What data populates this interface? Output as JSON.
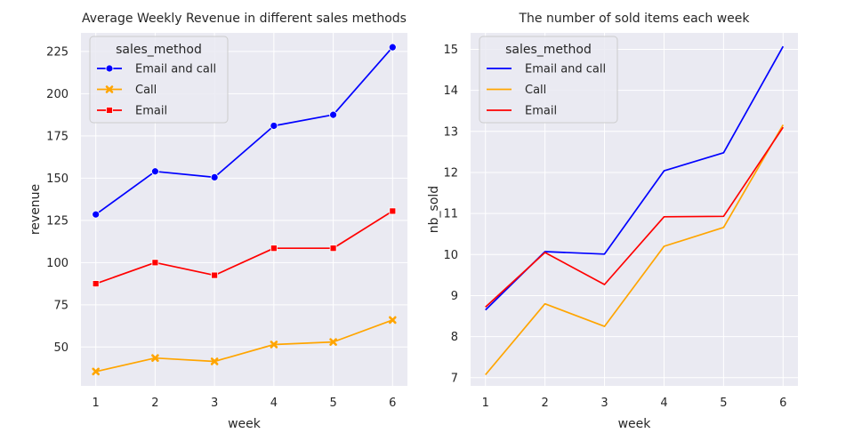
{
  "chart_data": [
    {
      "type": "line",
      "title": "Average Weekly Revenue in different sales methods",
      "xlabel": "week",
      "ylabel": "revenue",
      "x": [
        1,
        2,
        3,
        4,
        5,
        6
      ],
      "xticks": [
        "1",
        "2",
        "3",
        "4",
        "5",
        "6"
      ],
      "yticks": [
        "50",
        "75",
        "100",
        "125",
        "150",
        "175",
        "200",
        "225"
      ],
      "ylim": [
        27,
        236
      ],
      "grid": true,
      "legend_title": "sales_method",
      "legend_position": "top-left",
      "series": [
        {
          "name": "Email and call",
          "color": "#0000ff",
          "marker": "circle",
          "values": [
            128.5,
            154,
            150.5,
            181,
            187.5,
            227.5
          ]
        },
        {
          "name": "Call",
          "color": "#ffa500",
          "marker": "x",
          "values": [
            35.5,
            43.5,
            41.5,
            51.5,
            53,
            66
          ]
        },
        {
          "name": "Email",
          "color": "#ff0000",
          "marker": "square",
          "values": [
            87.5,
            100,
            92.5,
            108.5,
            108.5,
            130.5
          ]
        }
      ]
    },
    {
      "type": "line",
      "title": "The number of sold items each week",
      "xlabel": "week",
      "ylabel": "nb_sold",
      "x": [
        1,
        2,
        3,
        4,
        5,
        6
      ],
      "xticks": [
        "1",
        "2",
        "3",
        "4",
        "5",
        "6"
      ],
      "yticks": [
        "7",
        "8",
        "9",
        "10",
        "11",
        "12",
        "13",
        "14",
        "15"
      ],
      "ylim": [
        6.8,
        15.4
      ],
      "grid": true,
      "legend_title": "sales_method",
      "legend_position": "top-left",
      "series": [
        {
          "name": "Email and call",
          "color": "#0000ff",
          "marker": "none",
          "values": [
            8.65,
            10.07,
            10.01,
            12.04,
            12.48,
            15.07
          ]
        },
        {
          "name": "Call",
          "color": "#ffa500",
          "marker": "none",
          "values": [
            7.07,
            8.8,
            8.25,
            10.2,
            10.66,
            13.16
          ]
        },
        {
          "name": "Email",
          "color": "#ff0000",
          "marker": "none",
          "values": [
            8.72,
            10.05,
            9.27,
            10.92,
            10.93,
            13.1
          ]
        }
      ]
    }
  ]
}
